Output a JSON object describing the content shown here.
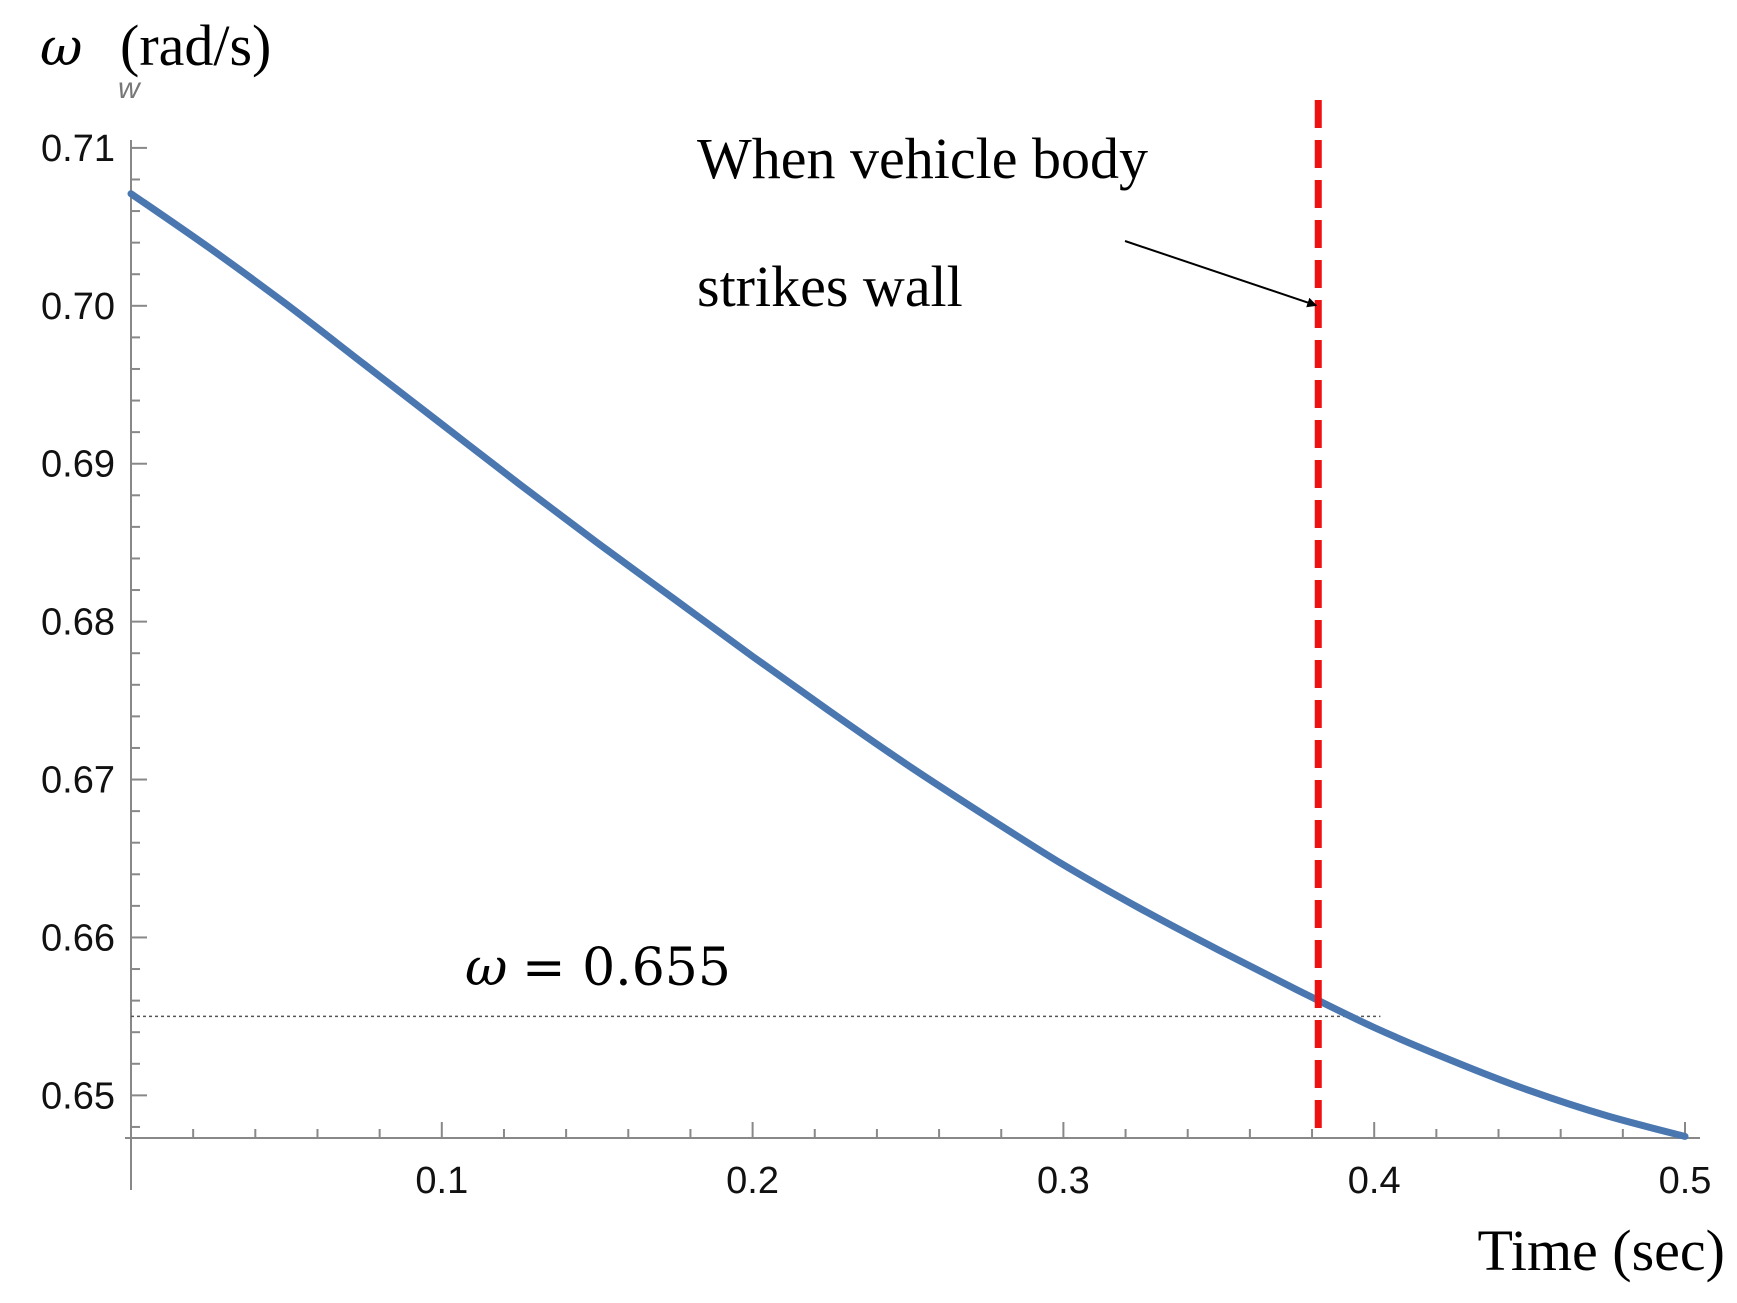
{
  "chart_data": {
    "type": "line",
    "title": "",
    "xlabel": "Time (sec)",
    "ylabel": {
      "symbol": "ω",
      "subscript": "w",
      "unit": "(rad/s)"
    },
    "xlim": [
      0,
      0.5
    ],
    "ylim": [
      0.6473,
      0.7105
    ],
    "x_ticks": [
      "0.1",
      "0.2",
      "0.3",
      "0.4",
      "0.5"
    ],
    "x_tick_values": [
      0.1,
      0.2,
      0.3,
      0.4,
      0.5
    ],
    "y_ticks": [
      "0.65",
      "0.66",
      "0.67",
      "0.68",
      "0.69",
      "0.70",
      "0.71"
    ],
    "y_tick_values": [
      0.65,
      0.66,
      0.67,
      0.68,
      0.69,
      0.7,
      0.71
    ],
    "grid": false,
    "series": [
      {
        "color": "#4a77b0",
        "x": [
          0,
          0.025,
          0.05,
          0.075,
          0.1,
          0.125,
          0.15,
          0.175,
          0.2,
          0.225,
          0.25,
          0.275,
          0.3,
          0.325,
          0.35,
          0.375,
          0.4,
          0.425,
          0.45,
          0.475,
          0.5
        ],
        "y": [
          0.7071,
          0.7037,
          0.7001,
          0.6963,
          0.6925,
          0.6887,
          0.685,
          0.6814,
          0.6778,
          0.6743,
          0.6709,
          0.6677,
          0.6646,
          0.6618,
          0.6592,
          0.6567,
          0.6543,
          0.6522,
          0.6503,
          0.6487,
          0.6474
        ]
      }
    ],
    "reference_lines": [
      {
        "orientation": "vertical",
        "x": 0.382,
        "style": "dashed",
        "color": "#ee1111"
      },
      {
        "orientation": "horizontal",
        "y": 0.655,
        "x_end": 0.402,
        "style": "dotted",
        "color": "#555555"
      }
    ],
    "annotations": {
      "wall_text_line1": "When vehicle body",
      "wall_text_line2": "strikes wall",
      "omega_symbol": "ω",
      "omega_equation": "= 0.655"
    },
    "arrow_target": {
      "x": 0.382,
      "y": 0.6999
    }
  }
}
